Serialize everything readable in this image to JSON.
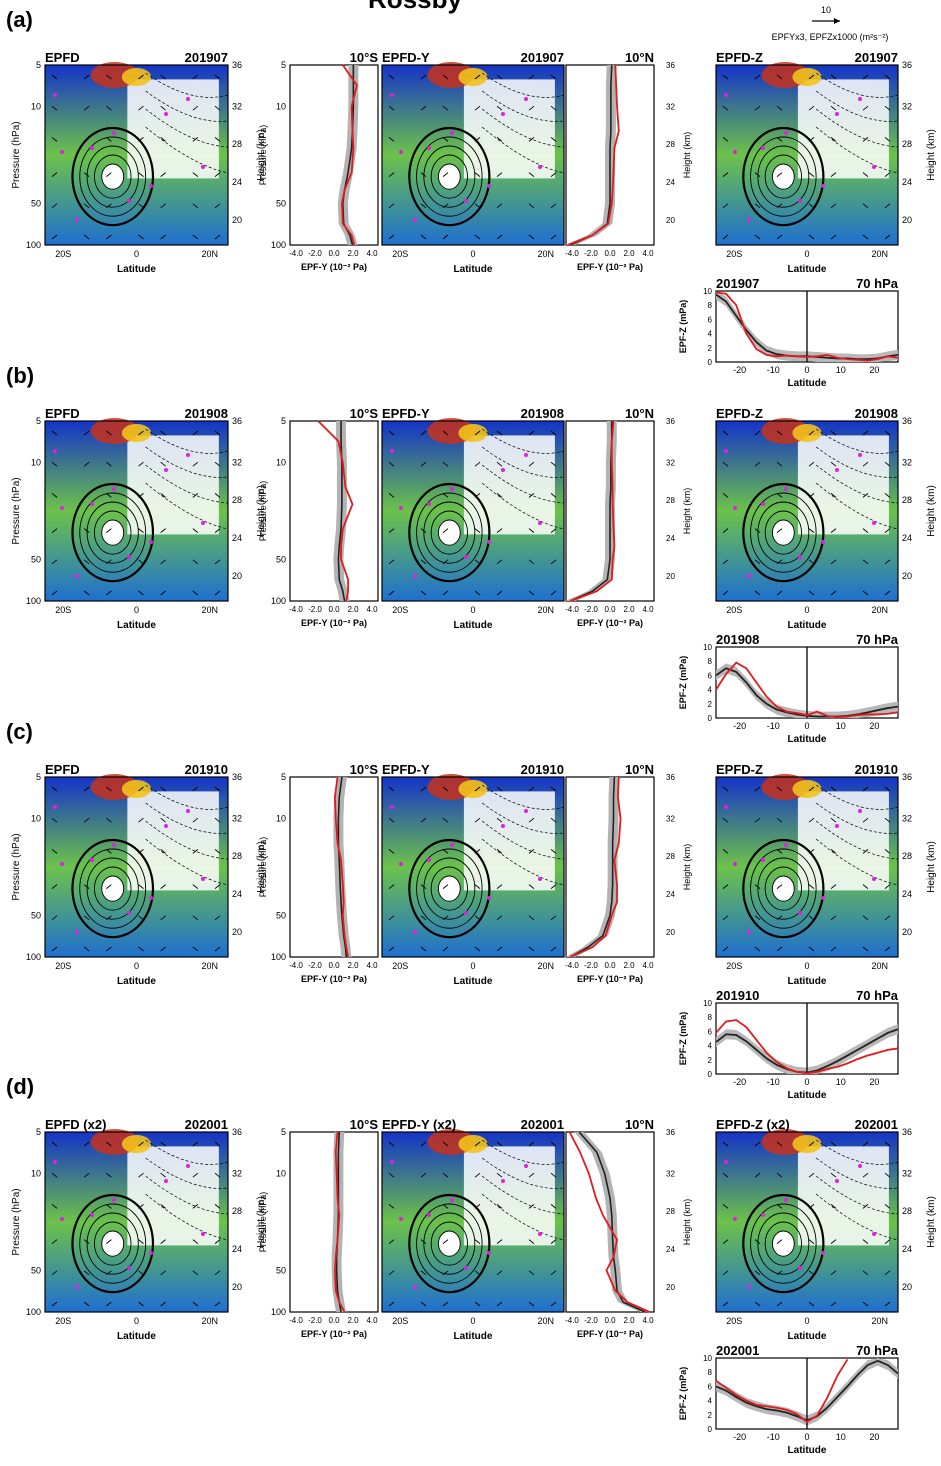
{
  "figure": {
    "title": "Rossby",
    "vector_legend": {
      "value": "10",
      "label": "EPFYx3, EPFZx1000 (m²s⁻²)"
    },
    "common": {
      "pressure_ticks": [
        "5",
        "10",
        "50",
        "100"
      ],
      "pressure_label": "Pressure (hPa)",
      "height_ticks": [
        "36",
        "32",
        "28",
        "24",
        "20"
      ],
      "height_label": "Height (km)",
      "lat_ticks": [
        "20S",
        "0",
        "20N"
      ],
      "lat_label": "Latitude",
      "profile_ticks": [
        "-4.0",
        "-2.0",
        "0.0",
        "2.0",
        "4.0"
      ],
      "profile_label": "EPF-Y (10⁻² Pa)",
      "line_y_ticks": [
        "0",
        "2",
        "4",
        "6",
        "8",
        "10"
      ],
      "line_x_ticks": [
        "-20",
        "-10",
        "0",
        "10",
        "20"
      ],
      "line_ylabel": "EPF-Z (mPa)",
      "line_xlabel": "Latitude",
      "left_profile_tag": "10°S",
      "right_profile_tag": "10°N",
      "line_level": "70 hPa"
    },
    "panels": [
      {
        "letter": "(a)",
        "date": "201907",
        "epfd": "EPFD",
        "epfdy": "EPFD-Y",
        "epfdz": "EPFD-Z"
      },
      {
        "letter": "(b)",
        "date": "201908",
        "epfd": "EPFD",
        "epfdy": "EPFD-Y",
        "epfdz": "EPFD-Z"
      },
      {
        "letter": "(c)",
        "date": "201910",
        "epfd": "EPFD",
        "epfdy": "EPFD-Y",
        "epfdz": "EPFD-Z"
      },
      {
        "letter": "(d)",
        "date": "202001",
        "epfd": "EPFD (x2)",
        "epfdy": "EPFD-Y (x2)",
        "epfdz": "EPFD-Z (x2)"
      }
    ]
  },
  "chart_data": [
    {
      "type": "line",
      "panel": "(a)",
      "title": "201907 70 hPa",
      "xlabel": "Latitude",
      "ylabel": "EPF-Z (mPa)",
      "xlim": [
        -27,
        27
      ],
      "ylim": [
        0,
        10
      ],
      "x": [
        -27,
        -24,
        -21,
        -18,
        -15,
        -12,
        -9,
        -6,
        -3,
        0,
        3,
        6,
        9,
        12,
        15,
        18,
        21,
        24,
        27
      ],
      "series": [
        {
          "color": "#222222",
          "values": [
            9.5,
            8.5,
            6.5,
            4.5,
            2.8,
            1.6,
            1.1,
            0.9,
            0.8,
            0.8,
            0.7,
            0.6,
            0.5,
            0.5,
            0.4,
            0.4,
            0.5,
            0.8,
            1.0
          ]
        },
        {
          "color": "#e31a1c",
          "values": [
            9.8,
            9.6,
            8.0,
            4.0,
            1.8,
            1.0,
            0.8,
            0.9,
            0.8,
            0.7,
            0.8,
            1.0,
            0.6,
            0.4,
            0.3,
            0.2,
            0.4,
            0.8,
            0.6
          ]
        }
      ]
    },
    {
      "type": "line",
      "panel": "(b)",
      "title": "201908 70 hPa",
      "xlabel": "Latitude",
      "ylabel": "EPF-Z (mPa)",
      "xlim": [
        -27,
        27
      ],
      "ylim": [
        0,
        10
      ],
      "x": [
        -27,
        -24,
        -21,
        -18,
        -15,
        -12,
        -9,
        -6,
        -3,
        0,
        3,
        6,
        9,
        12,
        15,
        18,
        21,
        24,
        27
      ],
      "series": [
        {
          "color": "#222222",
          "values": [
            6.0,
            7.0,
            6.5,
            5.0,
            3.2,
            2.0,
            1.2,
            0.8,
            0.5,
            0.3,
            0.2,
            0.2,
            0.2,
            0.3,
            0.5,
            0.8,
            1.1,
            1.4,
            1.6
          ]
        },
        {
          "color": "#e31a1c",
          "values": [
            4.0,
            6.2,
            7.8,
            7.0,
            5.0,
            3.0,
            1.6,
            0.9,
            0.7,
            0.4,
            0.9,
            0.3,
            0.1,
            0.2,
            0.4,
            0.5,
            0.5,
            0.6,
            0.8
          ]
        }
      ]
    },
    {
      "type": "line",
      "panel": "(c)",
      "title": "201910 70 hPa",
      "xlabel": "Latitude",
      "ylabel": "EPF-Z (mPa)",
      "xlim": [
        -27,
        27
      ],
      "ylim": [
        0,
        10
      ],
      "x": [
        -27,
        -24,
        -21,
        -18,
        -15,
        -12,
        -9,
        -6,
        -3,
        0,
        3,
        6,
        9,
        12,
        15,
        18,
        21,
        24,
        27
      ],
      "series": [
        {
          "color": "#222222",
          "values": [
            4.5,
            5.6,
            5.5,
            4.6,
            3.4,
            2.2,
            1.3,
            0.7,
            0.3,
            0.2,
            0.5,
            1.1,
            1.8,
            2.6,
            3.4,
            4.2,
            5.0,
            5.8,
            6.3
          ]
        },
        {
          "color": "#e31a1c",
          "values": [
            5.8,
            7.4,
            7.6,
            6.6,
            4.8,
            3.0,
            1.7,
            0.8,
            0.3,
            0.1,
            0.3,
            0.7,
            1.0,
            1.5,
            2.1,
            2.6,
            3.0,
            3.4,
            3.6
          ]
        }
      ]
    },
    {
      "type": "line",
      "panel": "(d)",
      "title": "202001 70 hPa",
      "xlabel": "Latitude",
      "ylabel": "EPF-Z (mPa)",
      "xlim": [
        -27,
        27
      ],
      "ylim": [
        0,
        10
      ],
      "x": [
        -27,
        -24,
        -21,
        -18,
        -15,
        -12,
        -9,
        -6,
        -3,
        0,
        3,
        6,
        9,
        12,
        15,
        18,
        21,
        24,
        27
      ],
      "series": [
        {
          "color": "#222222",
          "values": [
            6.0,
            5.4,
            4.5,
            3.7,
            3.2,
            2.8,
            2.6,
            2.3,
            1.8,
            1.2,
            1.8,
            3.0,
            4.5,
            6.0,
            7.6,
            9.0,
            9.6,
            9.0,
            7.8
          ]
        },
        {
          "color": "#e31a1c",
          "values": [
            6.8,
            5.8,
            4.8,
            4.0,
            3.4,
            3.2,
            3.0,
            2.7,
            2.1,
            1.0,
            1.9,
            4.4,
            7.5,
            9.8,
            null,
            null,
            null,
            null,
            null
          ]
        }
      ]
    },
    {
      "type": "line",
      "panel": "profiles",
      "orientation": "vertical",
      "xlabel": "EPF-Y (10⁻² Pa)",
      "ylabel": "Pressure (hPa)",
      "xlim": [
        -5,
        5
      ],
      "ylim": [
        100,
        5
      ],
      "pressure": [
        5,
        7,
        10,
        15,
        20,
        30,
        40,
        50,
        70,
        85,
        100
      ],
      "profiles": [
        {
          "panel": "(a)",
          "side": "10°S",
          "black": [
            2.2,
            2.2,
            2.2,
            2.1,
            2.0,
            1.6,
            1.2,
            1.0,
            1.1,
            1.8,
            2.1
          ],
          "red": [
            1.0,
            2.6,
            2.0,
            2.1,
            2.2,
            2.0,
            1.2,
            0.9,
            1.0,
            2.0,
            2.3
          ]
        },
        {
          "panel": "(a)",
          "side": "10°N",
          "black": [
            0.2,
            0.1,
            0.1,
            0.1,
            0.0,
            0.0,
            0.0,
            0.0,
            -0.3,
            -2.0,
            -4.5
          ],
          "red": [
            0.6,
            0.7,
            0.8,
            1.0,
            0.5,
            0.4,
            0.3,
            0.2,
            -0.2,
            -2.0,
            -4.8
          ]
        },
        {
          "panel": "(b)",
          "side": "10°S",
          "black": [
            0.8,
            0.8,
            0.9,
            0.9,
            0.9,
            0.8,
            0.6,
            0.5,
            0.6,
            1.0,
            1.2
          ],
          "red": [
            -1.8,
            0.5,
            1.0,
            1.3,
            2.1,
            1.0,
            0.8,
            0.8,
            1.6,
            1.6,
            1.4
          ]
        },
        {
          "panel": "(b)",
          "side": "10°N",
          "black": [
            0.2,
            0.2,
            0.1,
            0.1,
            0.0,
            0.0,
            0.0,
            0.0,
            -0.3,
            -2.0,
            -4.5
          ],
          "red": [
            0.4,
            0.2,
            0.2,
            0.3,
            0.3,
            0.4,
            0.5,
            0.3,
            0.2,
            -1.5,
            -4.5
          ]
        },
        {
          "panel": "(c)",
          "side": "10°S",
          "black": [
            0.9,
            0.6,
            0.5,
            0.5,
            0.6,
            0.7,
            0.8,
            0.9,
            1.1,
            1.3,
            1.4
          ],
          "red": [
            0.4,
            0.1,
            0.2,
            0.4,
            0.8,
            1.0,
            1.1,
            1.0,
            1.2,
            1.4,
            1.6
          ]
        },
        {
          "panel": "(c)",
          "side": "10°N",
          "black": [
            0.5,
            0.4,
            0.4,
            0.3,
            0.3,
            0.3,
            0.2,
            0.0,
            -0.8,
            -2.5,
            -4.5
          ],
          "red": [
            1.0,
            0.9,
            1.2,
            1.0,
            0.5,
            0.8,
            0.8,
            0.2,
            -0.5,
            -2.0,
            -4.5
          ]
        },
        {
          "panel": "(d)",
          "side": "10°S",
          "black": [
            0.6,
            0.5,
            0.5,
            0.5,
            0.5,
            0.4,
            0.3,
            0.3,
            0.4,
            0.6,
            0.8
          ],
          "red": [
            0.4,
            0.2,
            0.3,
            0.4,
            0.6,
            0.4,
            0.2,
            0.1,
            0.2,
            0.6,
            1.2
          ]
        },
        {
          "panel": "(d)",
          "side": "10°N",
          "black": [
            -3.5,
            -1.5,
            -0.6,
            0.0,
            0.2,
            0.3,
            0.4,
            0.6,
            0.8,
            1.5,
            4.0
          ],
          "red": [
            -4.6,
            -3.4,
            -2.4,
            -1.6,
            -0.8,
            0.8,
            0.4,
            -0.4,
            0.6,
            2.0,
            4.5
          ]
        }
      ]
    }
  ]
}
